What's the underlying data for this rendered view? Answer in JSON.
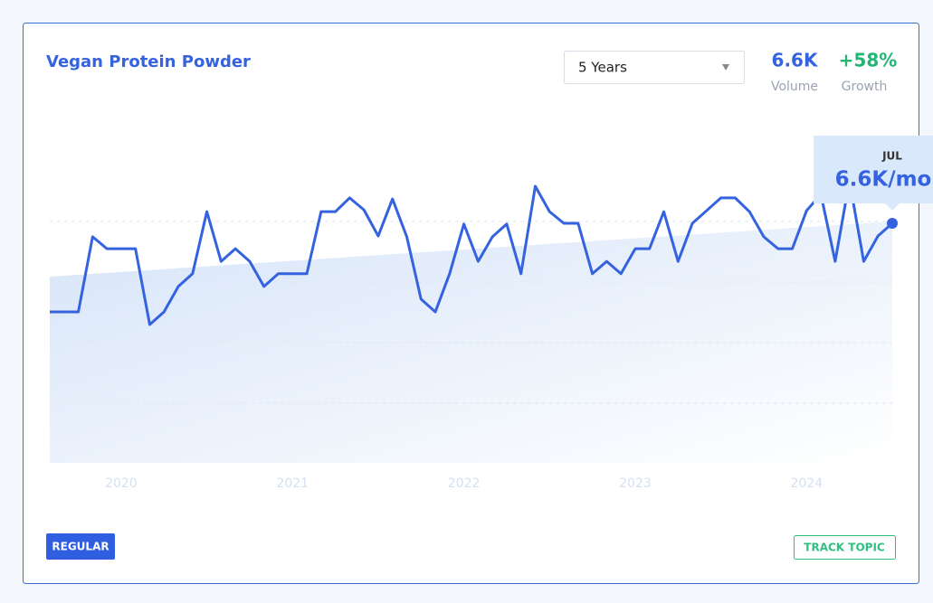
{
  "header": {
    "title": "Vegan Protein Powder",
    "range": "5 Years",
    "volume": "6.6K",
    "volume_label": "Volume",
    "growth": "+58%",
    "growth_label": "Growth"
  },
  "tooltip": {
    "month": "JUL",
    "value": "6.6K/mo"
  },
  "footer": {
    "badge": "REGULAR",
    "action": "TRACK TOPIC"
  },
  "chart_data": {
    "type": "line",
    "categories": [
      null,
      null,
      null,
      null,
      null,
      "2020",
      null,
      null,
      null,
      null,
      null,
      null,
      null,
      null,
      null,
      null,
      null,
      "2021",
      null,
      null,
      null,
      null,
      null,
      null,
      null,
      null,
      null,
      null,
      null,
      "2022",
      null,
      null,
      null,
      null,
      null,
      null,
      null,
      null,
      null,
      null,
      null,
      "2023",
      null,
      null,
      null,
      null,
      null,
      null,
      null,
      null,
      null,
      null,
      null,
      "2024",
      null,
      null,
      null,
      null,
      null,
      null
    ],
    "series": [
      {
        "name": "Volume",
        "color": "#3563e0",
        "values": [
          4160,
          4160,
          4160,
          6230,
          5900,
          5900,
          5900,
          3810,
          4160,
          4860,
          5210,
          6920,
          5550,
          5900,
          5550,
          4860,
          5210,
          5210,
          5210,
          6920,
          6920,
          7300,
          6970,
          6250,
          7270,
          6230,
          4510,
          4160,
          5210,
          6580,
          5550,
          6230,
          6580,
          5210,
          7620,
          6920,
          6600,
          6600,
          5210,
          5550,
          5210,
          5900,
          5900,
          6920,
          5550,
          6600,
          6950,
          7300,
          7300,
          6920,
          6230,
          5900,
          5900,
          6950,
          7400,
          5550,
          7770,
          5550,
          6250,
          6600
        ]
      }
    ],
    "trend_values": [
      5130,
      6650
    ],
    "ylim": [
      0,
      9800
    ]
  }
}
